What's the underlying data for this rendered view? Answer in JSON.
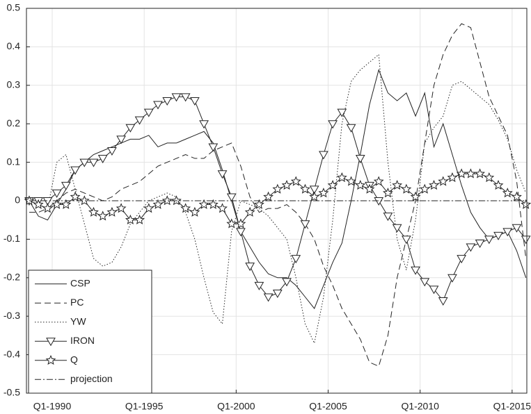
{
  "chart_data": {
    "type": "line",
    "x": [
      1988.75,
      1989.25,
      1989.75,
      1990.25,
      1990.75,
      1991.25,
      1991.75,
      1992.25,
      1992.75,
      1993.25,
      1993.75,
      1994.25,
      1994.75,
      1995.25,
      1995.75,
      1996.25,
      1996.75,
      1997.25,
      1997.75,
      1998.25,
      1998.75,
      1999.25,
      1999.75,
      2000.25,
      2000.75,
      2001.25,
      2001.75,
      2002.25,
      2002.75,
      2003.25,
      2003.75,
      2004.25,
      2004.75,
      2005.25,
      2005.75,
      2006.25,
      2006.75,
      2007.25,
      2007.75,
      2008.25,
      2008.75,
      2009.25,
      2009.75,
      2010.25,
      2010.75,
      2011.25,
      2011.75,
      2012.25,
      2012.75,
      2013.25,
      2013.75,
      2014.25,
      2014.75,
      2015.25,
      2015.75
    ],
    "xlim": [
      1988.6,
      2015.8
    ],
    "xticks": [
      {
        "value": 1990,
        "label": "Q1-1990"
      },
      {
        "value": 1995,
        "label": "Q1-1995"
      },
      {
        "value": 2000,
        "label": "Q1-2000"
      },
      {
        "value": 2005,
        "label": "Q1-2005"
      },
      {
        "value": 2010,
        "label": "Q1-2010"
      },
      {
        "value": 2015,
        "label": "Q1-2015"
      }
    ],
    "ylim": [
      -0.5,
      0.5
    ],
    "yticks": [
      -0.5,
      -0.4,
      -0.3,
      -0.2,
      -0.1,
      0,
      0.1,
      0.2,
      0.3,
      0.4,
      0.5
    ],
    "grid": true,
    "legend": "lower left",
    "series": [
      {
        "name": "CSP",
        "color": "#222222",
        "linestyle": "solid",
        "marker": "none",
        "values": [
          0,
          -0.04,
          -0.05,
          -0.01,
          0.03,
          0.08,
          0.1,
          0.12,
          0.13,
          0.14,
          0.15,
          0.16,
          0.16,
          0.17,
          0.14,
          0.15,
          0.15,
          0.16,
          0.17,
          0.18,
          0.15,
          0.08,
          0,
          -0.08,
          -0.12,
          -0.16,
          -0.19,
          -0.2,
          -0.2,
          -0.22,
          -0.25,
          -0.28,
          -0.22,
          -0.16,
          -0.11,
          0,
          0.12,
          0.25,
          0.34,
          0.28,
          0.26,
          0.28,
          0.22,
          0.28,
          0.14,
          0.2,
          0.12,
          0.04,
          -0.03,
          -0.07,
          -0.1,
          -0.09,
          -0.08,
          -0.13,
          -0.2
        ]
      },
      {
        "name": "PC",
        "color": "#222222",
        "linestyle": "dashed",
        "marker": "none",
        "values": [
          -0.03,
          -0.03,
          -0.02,
          0,
          0.02,
          0.03,
          0.02,
          0.01,
          0,
          0.01,
          0.03,
          0.04,
          0.05,
          0.07,
          0.09,
          0.1,
          0.11,
          0.12,
          0.11,
          0.11,
          0.13,
          0.14,
          0.15,
          0.09,
          0.01,
          -0.03,
          -0.02,
          -0.02,
          -0.01,
          -0.03,
          -0.06,
          -0.1,
          -0.17,
          -0.22,
          -0.28,
          -0.32,
          -0.36,
          -0.42,
          -0.43,
          -0.35,
          -0.2,
          -0.1,
          0,
          0.15,
          0.3,
          0.38,
          0.43,
          0.46,
          0.45,
          0.36,
          0.27,
          0.22,
          0.17,
          0.05,
          -0.15
        ]
      },
      {
        "name": "YW",
        "color": "#222222",
        "linestyle": "dotted",
        "marker": "none",
        "values": [
          0,
          -0.01,
          -0.02,
          0.1,
          0.12,
          0.03,
          -0.06,
          -0.15,
          -0.17,
          -0.16,
          -0.12,
          -0.06,
          -0.03,
          0,
          0.01,
          0.02,
          0.01,
          -0.03,
          -0.1,
          -0.2,
          -0.29,
          -0.32,
          -0.08,
          0,
          -0.01,
          -0.02,
          -0.04,
          -0.07,
          -0.1,
          -0.2,
          -0.32,
          -0.37,
          -0.25,
          -0.05,
          0.2,
          0.31,
          0.34,
          0.36,
          0.38,
          0.1,
          -0.1,
          -0.18,
          -0.05,
          0.15,
          0.19,
          0.22,
          0.3,
          0.31,
          0.29,
          0.27,
          0.25,
          0.21,
          0.16,
          0.08,
          0.02
        ]
      },
      {
        "name": "IRON",
        "color": "#222222",
        "linestyle": "solid",
        "marker": "triangle-down",
        "values": [
          0,
          0,
          0,
          0.02,
          0.04,
          0.08,
          0.1,
          0.1,
          0.11,
          0.13,
          0.16,
          0.19,
          0.21,
          0.23,
          0.25,
          0.26,
          0.27,
          0.27,
          0.26,
          0.2,
          0.14,
          0.07,
          0.01,
          -0.08,
          -0.17,
          -0.22,
          -0.25,
          -0.24,
          -0.21,
          -0.15,
          -0.06,
          0.03,
          0.12,
          0.2,
          0.23,
          0.19,
          0.11,
          0.04,
          0,
          -0.04,
          -0.07,
          -0.1,
          -0.18,
          -0.21,
          -0.23,
          -0.26,
          -0.2,
          -0.15,
          -0.12,
          -0.11,
          -0.1,
          -0.09,
          -0.08,
          -0.07,
          -0.1
        ]
      },
      {
        "name": "Q",
        "color": "#222222",
        "linestyle": "solid",
        "marker": "star",
        "values": [
          0,
          -0.01,
          -0.02,
          -0.01,
          -0.01,
          0.01,
          0,
          -0.03,
          -0.04,
          -0.03,
          -0.02,
          -0.05,
          -0.05,
          -0.02,
          -0.01,
          0,
          0,
          -0.02,
          -0.03,
          -0.01,
          -0.01,
          -0.02,
          -0.06,
          -0.06,
          -0.03,
          -0.01,
          0.01,
          0.03,
          0.04,
          0.05,
          0.03,
          0.01,
          0.02,
          0.04,
          0.06,
          0.05,
          0.04,
          0.03,
          0.05,
          0.02,
          0.04,
          0.03,
          0.01,
          0.03,
          0.04,
          0.05,
          0.06,
          0.07,
          0.07,
          0.07,
          0.06,
          0.04,
          0.02,
          0.01,
          -0.01
        ]
      },
      {
        "name": "projection",
        "color": "#222222",
        "linestyle": "dashdot",
        "marker": "none",
        "values": [
          0,
          0,
          0,
          0,
          0,
          0,
          0,
          0,
          0,
          0,
          0,
          0,
          0,
          0,
          0,
          0,
          0,
          0,
          0,
          0,
          0,
          0,
          0,
          0,
          0,
          0,
          0,
          0,
          0,
          0,
          0,
          0,
          0,
          0,
          0,
          0,
          0,
          0,
          0,
          0,
          0,
          0,
          0,
          0,
          0,
          0,
          0,
          0,
          0,
          0,
          0,
          0,
          0,
          0,
          0
        ]
      }
    ]
  }
}
